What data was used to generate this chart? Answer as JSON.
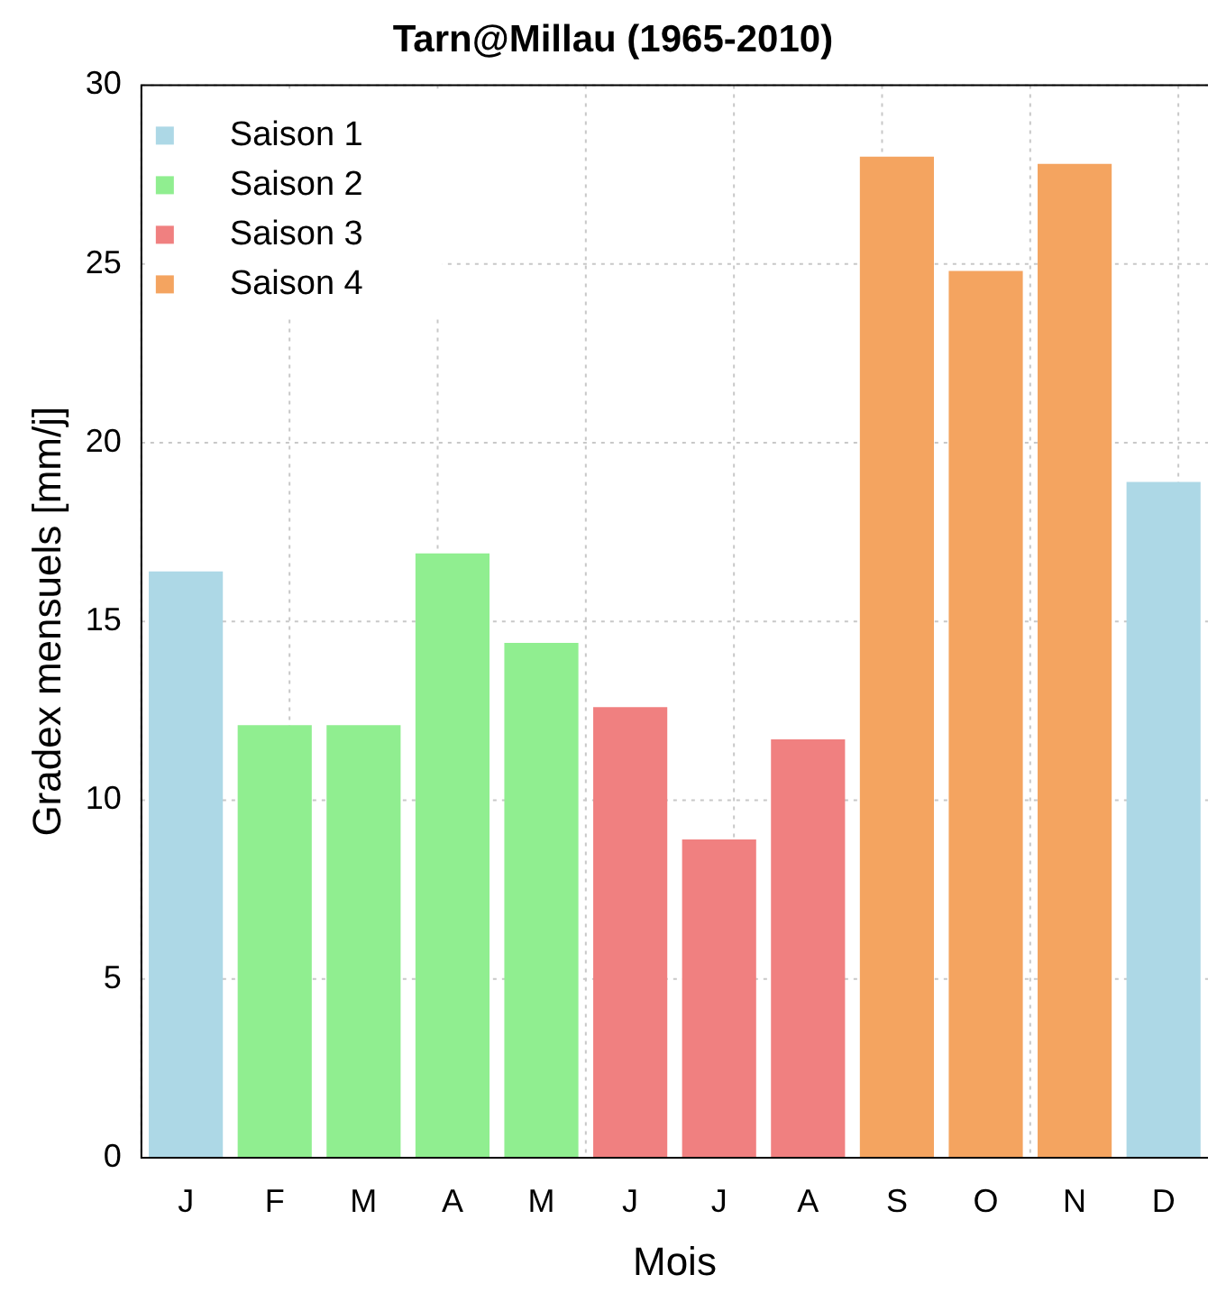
{
  "chart_data": {
    "type": "bar",
    "title": "Tarn@Millau (1965-2010)",
    "xlabel": "Mois",
    "ylabel": "Gradex mensuels [mm/j]",
    "categories": [
      "J",
      "F",
      "M",
      "A",
      "M",
      "J",
      "J",
      "A",
      "S",
      "O",
      "N",
      "D"
    ],
    "series": [
      {
        "name": "Saison 1",
        "color": "#add8e6",
        "values": [
          16.4,
          null,
          null,
          null,
          null,
          null,
          null,
          null,
          null,
          null,
          null,
          18.9
        ]
      },
      {
        "name": "Saison 2",
        "color": "#90ee90",
        "values": [
          null,
          12.1,
          12.1,
          16.9,
          14.4,
          null,
          null,
          null,
          null,
          null,
          null,
          null
        ]
      },
      {
        "name": "Saison 3",
        "color": "#f08080",
        "values": [
          null,
          null,
          null,
          null,
          null,
          12.6,
          8.9,
          11.7,
          null,
          null,
          null,
          null
        ]
      },
      {
        "name": "Saison 4",
        "color": "#f4a460",
        "values": [
          null,
          null,
          null,
          null,
          null,
          null,
          null,
          null,
          28.0,
          24.8,
          27.8,
          null
        ]
      }
    ],
    "ylim": [
      0,
      30
    ],
    "yticks": [
      0,
      5,
      10,
      15,
      20,
      25,
      30
    ],
    "grid": true,
    "legend": "top left"
  }
}
